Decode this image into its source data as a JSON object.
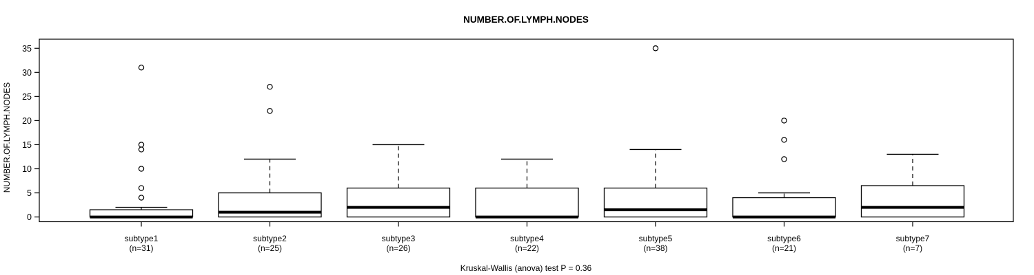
{
  "chart_data": {
    "type": "boxplot",
    "title": "NUMBER.OF.LYMPH.NODES",
    "ylabel": "NUMBER.OF.LYMPH.NODES",
    "note": "Kruskal-Wallis (anova) test P = 0.36",
    "ylim": [
      0,
      35
    ],
    "yticks": [
      0,
      5,
      10,
      15,
      20,
      25,
      30,
      35
    ],
    "grid": false,
    "legend_position": "none",
    "groups": [
      {
        "label": "subtype1",
        "n_label": "(n=31)",
        "n": 31,
        "whisker_low": 0,
        "q1": 0,
        "median": 0,
        "q3": 1.5,
        "whisker_high": 2,
        "outliers": [
          4,
          6,
          10,
          14,
          15,
          31
        ]
      },
      {
        "label": "subtype2",
        "n_label": "(n=25)",
        "n": 25,
        "whisker_low": 0,
        "q1": 0,
        "median": 1,
        "q3": 5,
        "whisker_high": 12,
        "outliers": [
          22,
          27
        ]
      },
      {
        "label": "subtype3",
        "n_label": "(n=26)",
        "n": 26,
        "whisker_low": 0,
        "q1": 0,
        "median": 2,
        "q3": 6,
        "whisker_high": 15,
        "outliers": []
      },
      {
        "label": "subtype4",
        "n_label": "(n=22)",
        "n": 22,
        "whisker_low": 0,
        "q1": 0,
        "median": 0,
        "q3": 6,
        "whisker_high": 12,
        "outliers": []
      },
      {
        "label": "subtype5",
        "n_label": "(n=38)",
        "n": 38,
        "whisker_low": 0,
        "q1": 0,
        "median": 1.5,
        "q3": 6,
        "whisker_high": 14,
        "outliers": [
          35
        ]
      },
      {
        "label": "subtype6",
        "n_label": "(n=21)",
        "n": 21,
        "whisker_low": 0,
        "q1": 0,
        "median": 0,
        "q3": 4,
        "whisker_high": 5,
        "outliers": [
          12,
          16,
          20
        ]
      },
      {
        "label": "subtype7",
        "n_label": "(n=7)",
        "n": 7,
        "whisker_low": 0,
        "q1": 0,
        "median": 2,
        "q3": 6.5,
        "whisker_high": 13,
        "outliers": []
      }
    ]
  },
  "colors": {
    "line": "#000000",
    "box_fill": "#ffffff",
    "background": "#ffffff"
  }
}
